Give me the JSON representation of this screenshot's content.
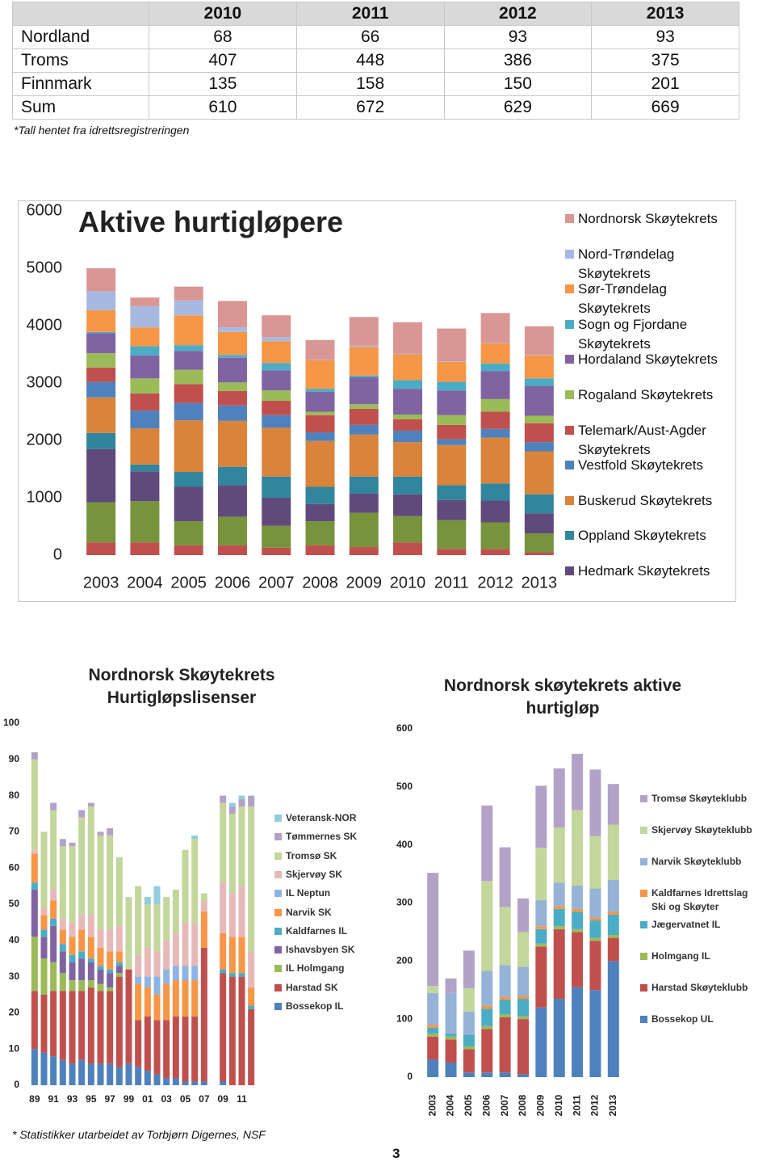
{
  "table": {
    "columns": [
      "2010",
      "2011",
      "2012",
      "2013"
    ],
    "rows": [
      [
        "Nordland",
        68,
        66,
        93,
        93
      ],
      [
        "Troms",
        407,
        448,
        386,
        375
      ],
      [
        "Finnmark",
        135,
        158,
        150,
        201
      ],
      [
        "Sum",
        610,
        672,
        629,
        669
      ]
    ],
    "note": "*Tall hentet fra idrettsregistreringen"
  },
  "chart_data": [
    {
      "type": "stacked-bar",
      "title": "Aktive hurtigløpere",
      "categories": [
        "2003",
        "2004",
        "2005",
        "2006",
        "2007",
        "2008",
        "2009",
        "2010",
        "2011",
        "2012",
        "2013"
      ],
      "ylim": [
        0,
        6000
      ],
      "yticks": [
        0,
        1000,
        2000,
        3000,
        4000,
        5000,
        6000
      ],
      "grid": false,
      "series": [
        {
          "color": "#c0504d",
          "values": [
            220,
            220,
            170,
            170,
            130,
            170,
            140,
            220,
            110,
            110,
            50
          ]
        },
        {
          "color": "#77933c",
          "values": [
            700,
            720,
            420,
            500,
            380,
            420,
            600,
            460,
            500,
            460,
            330
          ]
        },
        {
          "name": "Hedmark Skøytekrets",
          "color": "#604a7b",
          "values": [
            930,
            520,
            600,
            550,
            490,
            300,
            330,
            380,
            350,
            380,
            350
          ]
        },
        {
          "name": "Oppland Skøytekrets",
          "color": "#31859c",
          "values": [
            280,
            120,
            260,
            320,
            370,
            300,
            300,
            310,
            260,
            300,
            330
          ]
        },
        {
          "name": "Buskerud Skøytekrets",
          "color": "#d9833b",
          "values": [
            620,
            630,
            900,
            800,
            850,
            800,
            730,
            600,
            700,
            800,
            750
          ]
        },
        {
          "name": "Vestfold Skøytekrets",
          "color": "#4f81bd",
          "values": [
            270,
            310,
            300,
            270,
            220,
            150,
            170,
            200,
            100,
            150,
            160
          ]
        },
        {
          "name": "Telemark/Aust-Agder Skøytekrets",
          "color": "#c0504d",
          "values": [
            250,
            300,
            330,
            250,
            250,
            300,
            280,
            200,
            250,
            300,
            330
          ]
        },
        {
          "name": "Rogaland Skøytekrets",
          "color": "#9bbb59",
          "values": [
            250,
            260,
            250,
            150,
            180,
            60,
            80,
            80,
            170,
            220,
            130
          ]
        },
        {
          "name": "Hordaland Skøytekrets",
          "color": "#8064a2",
          "values": [
            350,
            400,
            330,
            430,
            350,
            350,
            470,
            450,
            430,
            490,
            520
          ]
        },
        {
          "name": "Sogn og Fjordane Skøytekrets",
          "color": "#4bacc6",
          "values": [
            20,
            160,
            100,
            50,
            130,
            50,
            30,
            150,
            150,
            130,
            130
          ]
        },
        {
          "name": "Sør-Trøndelag Skøytekrets",
          "color": "#f79646",
          "values": [
            380,
            330,
            520,
            400,
            380,
            500,
            500,
            450,
            350,
            350,
            400
          ]
        },
        {
          "name": "Nord-Trøndelag Skøytekrets",
          "color": "#a6b9e0",
          "values": [
            330,
            370,
            260,
            80,
            70,
            10,
            20,
            10,
            10,
            10,
            10
          ]
        },
        {
          "name": "Nordnorsk Skøytekrets",
          "color": "#d99694",
          "values": [
            400,
            150,
            240,
            460,
            380,
            340,
            500,
            550,
            570,
            520,
            500
          ]
        }
      ]
    },
    {
      "type": "stacked-bar",
      "title": "Nordnorsk Skøytekrets Hurtigløpslisenser",
      "categories": [
        "89",
        null,
        "91",
        null,
        "93",
        null,
        "95",
        null,
        "97",
        null,
        "99",
        null,
        "01",
        null,
        "03",
        null,
        "05",
        null,
        "07",
        null,
        "09",
        null,
        "11",
        null
      ],
      "ylim": [
        0,
        100
      ],
      "yticks": [
        0,
        10,
        20,
        30,
        40,
        50,
        60,
        70,
        80,
        90,
        100
      ],
      "grid": false,
      "series": [
        {
          "name": "Bossekop IL",
          "color": "#4f81bd",
          "values": [
            10,
            9,
            8,
            7,
            6,
            7,
            6,
            6,
            6,
            5,
            6,
            5,
            4,
            3,
            2,
            2,
            1,
            1,
            1,
            0,
            1,
            0,
            0,
            0
          ]
        },
        {
          "name": "Harstad SK",
          "color": "#c0504d",
          "values": [
            16,
            16,
            18,
            19,
            20,
            19,
            21,
            20,
            20,
            25,
            26,
            13,
            15,
            15,
            16,
            17,
            18,
            18,
            37,
            0,
            30,
            30,
            30,
            21
          ]
        },
        {
          "name": "IL Holmgang",
          "color": "#9bbb59",
          "values": [
            15,
            10,
            8,
            5,
            3,
            3,
            2,
            2,
            1,
            1,
            0,
            0,
            0,
            0,
            0,
            0,
            0,
            0,
            0,
            0,
            0,
            0,
            0,
            0
          ]
        },
        {
          "name": "Ishavsbyen SK",
          "color": "#8064a2",
          "values": [
            13,
            6,
            10,
            6,
            5,
            6,
            5,
            4,
            4,
            2,
            0,
            0,
            0,
            0,
            0,
            0,
            0,
            0,
            0,
            0,
            0,
            0,
            0,
            0
          ]
        },
        {
          "name": "Kaldfarnes IL",
          "color": "#4bacc6",
          "values": [
            2,
            2,
            2,
            2,
            2,
            2,
            1,
            1,
            1,
            1,
            0,
            0,
            0,
            0,
            0,
            0,
            0,
            0,
            0,
            0,
            1,
            1,
            1,
            1
          ]
        },
        {
          "name": "Narvik SK",
          "color": "#f79646",
          "values": [
            8,
            4,
            5,
            4,
            5,
            6,
            6,
            5,
            5,
            3,
            0,
            10,
            8,
            7,
            10,
            10,
            10,
            10,
            10,
            0,
            10,
            10,
            10,
            5
          ]
        },
        {
          "name": "IL Neptun",
          "color": "#8eb4e3",
          "values": [
            0,
            0,
            0,
            0,
            0,
            0,
            0,
            0,
            0,
            0,
            0,
            2,
            3,
            5,
            4,
            4,
            4,
            4,
            0,
            0,
            0,
            0,
            0,
            0
          ]
        },
        {
          "name": "Skjervøy SK",
          "color": "#e6b9b8",
          "values": [
            1,
            2,
            3,
            3,
            4,
            4,
            6,
            5,
            6,
            7,
            0,
            6,
            8,
            7,
            8,
            9,
            12,
            12,
            3,
            0,
            14,
            12,
            14,
            10
          ]
        },
        {
          "name": "Tromsø SK",
          "color": "#c3d69b",
          "values": [
            25,
            21,
            22,
            20,
            21,
            27,
            30,
            26,
            26,
            19,
            20,
            19,
            12,
            13,
            12,
            12,
            20,
            23,
            2,
            0,
            22,
            22,
            22,
            40
          ]
        },
        {
          "name": "Tømmernes SK",
          "color": "#b3a2c7",
          "values": [
            2,
            0,
            2,
            2,
            1,
            2,
            1,
            1,
            2,
            0,
            0,
            0,
            0,
            0,
            0,
            0,
            0,
            0,
            0,
            0,
            2,
            2,
            2,
            3
          ]
        },
        {
          "name": "Veteransk-NOR",
          "color": "#93cddd",
          "values": [
            0,
            0,
            0,
            0,
            0,
            0,
            0,
            0,
            0,
            0,
            0,
            0,
            2,
            5,
            0,
            0,
            0,
            1,
            0,
            0,
            0,
            1,
            1,
            0
          ]
        }
      ]
    },
    {
      "type": "stacked-bar",
      "title": "Nordnorsk skøytekrets aktive hurtigløp",
      "categories": [
        "2003",
        "2004",
        "2005",
        "2006",
        "2007",
        "2008",
        "2009",
        "2010",
        "2011",
        "2012",
        "2013"
      ],
      "ylim": [
        0,
        600
      ],
      "yticks": [
        0,
        100,
        200,
        300,
        400,
        500,
        600
      ],
      "grid": false,
      "series": [
        {
          "name": "Bossekop UL",
          "color": "#4f81bd",
          "values": [
            30,
            25,
            8,
            8,
            8,
            5,
            120,
            135,
            155,
            150,
            200
          ]
        },
        {
          "name": "Harstad Skøyteklubb",
          "color": "#c0504d",
          "values": [
            40,
            40,
            40,
            75,
            95,
            95,
            105,
            120,
            95,
            85,
            40
          ]
        },
        {
          "name": "Holmgang IL",
          "color": "#9bbb59",
          "values": [
            5,
            5,
            5,
            5,
            5,
            5,
            5,
            5,
            5,
            5,
            5
          ]
        },
        {
          "name": "Jægervatnet IL",
          "color": "#4bacc6",
          "values": [
            10,
            5,
            20,
            30,
            25,
            30,
            25,
            30,
            30,
            30,
            35
          ]
        },
        {
          "name": "Kaldfarnes Idrettslag Ski og Skøyter",
          "color": "#f79646",
          "values": [
            5,
            0,
            0,
            5,
            5,
            5,
            5,
            5,
            5,
            5,
            5
          ]
        },
        {
          "name": "Narvik Skøyteklubb",
          "color": "#95b3d7",
          "values": [
            55,
            70,
            40,
            60,
            55,
            50,
            45,
            40,
            40,
            50,
            55
          ]
        },
        {
          "name": "Skjervøy Skøyteklubb",
          "color": "#c3d69b",
          "values": [
            12,
            0,
            40,
            155,
            100,
            60,
            90,
            95,
            130,
            90,
            95
          ]
        },
        {
          "name": "Tromsø Skøyteklubb",
          "color": "#b3a2c7",
          "values": [
            195,
            25,
            65,
            130,
            103,
            58,
            107,
            102,
            97,
            115,
            70
          ]
        }
      ]
    }
  ],
  "footnote": "* Statistikker utarbeidet av Torbjørn Digernes, NSF",
  "page_number": "3"
}
